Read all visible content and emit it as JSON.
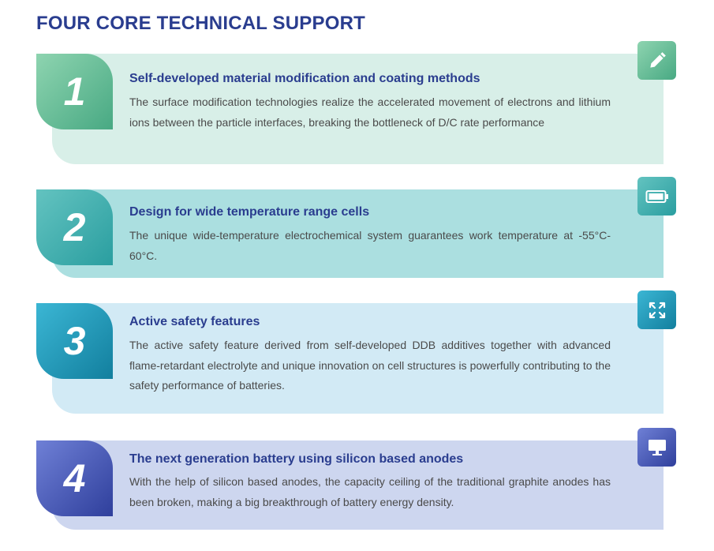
{
  "page": {
    "title": "FOUR CORE TECHNICAL SUPPORT"
  },
  "cards": [
    {
      "number": "1",
      "icon": "pencil-icon",
      "title": "Self-developed material modification and coating methods",
      "text": "The surface modification technologies realize the accelerated movement of electrons and lithium ions between the particle interfaces, breaking the bottleneck of D/C rate performance",
      "color": "#48a983"
    },
    {
      "number": "2",
      "icon": "battery-icon",
      "title": "Design for wide temperature range cells",
      "text": "The unique wide-temperature electrochemical system guarantees work temperature at -55°C-60°C.",
      "color": "#2a9ea0"
    },
    {
      "number": "3",
      "icon": "expand-icon",
      "title": "Active safety features",
      "text": "The active safety feature derived from self-developed DDB additives together with advanced flame-retardant electrolyte and unique innovation on cell structures is powerfully contributing to the safety performance of batteries.",
      "color": "#127f9e"
    },
    {
      "number": "4",
      "icon": "monitor-icon",
      "title": "The next generation battery using silicon based anodes",
      "text": "With the help of silicon based anodes, the capacity ceiling of the traditional graphite anodes has been broken, making a big breakthrough of battery energy density.",
      "color": "#2f3f9c"
    }
  ]
}
